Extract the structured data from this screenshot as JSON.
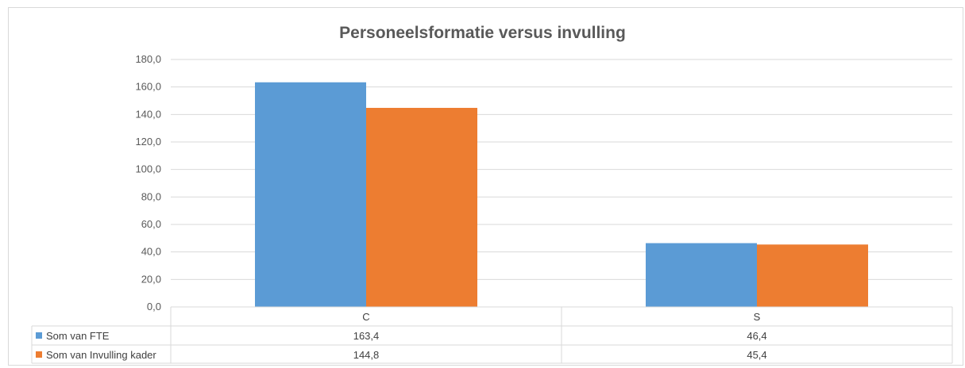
{
  "chart_data": {
    "type": "bar",
    "title": "Personeelsformatie versus invulling",
    "categories": [
      "C",
      "S"
    ],
    "series": [
      {
        "name": "Som van FTE",
        "values": [
          163.4,
          46.4
        ],
        "labels": [
          "163,4",
          "46,4"
        ],
        "color": "#5b9bd5"
      },
      {
        "name": "Som van Invulling kader",
        "values": [
          144.8,
          45.4
        ],
        "labels": [
          "144,8",
          "45,4"
        ],
        "color": "#ed7d31"
      }
    ],
    "ylim": [
      0,
      180
    ],
    "yticks": [
      "0,0",
      "20,0",
      "40,0",
      "60,0",
      "80,0",
      "100,0",
      "120,0",
      "140,0",
      "160,0",
      "180,0"
    ],
    "grid": true,
    "legend": "data-table"
  }
}
